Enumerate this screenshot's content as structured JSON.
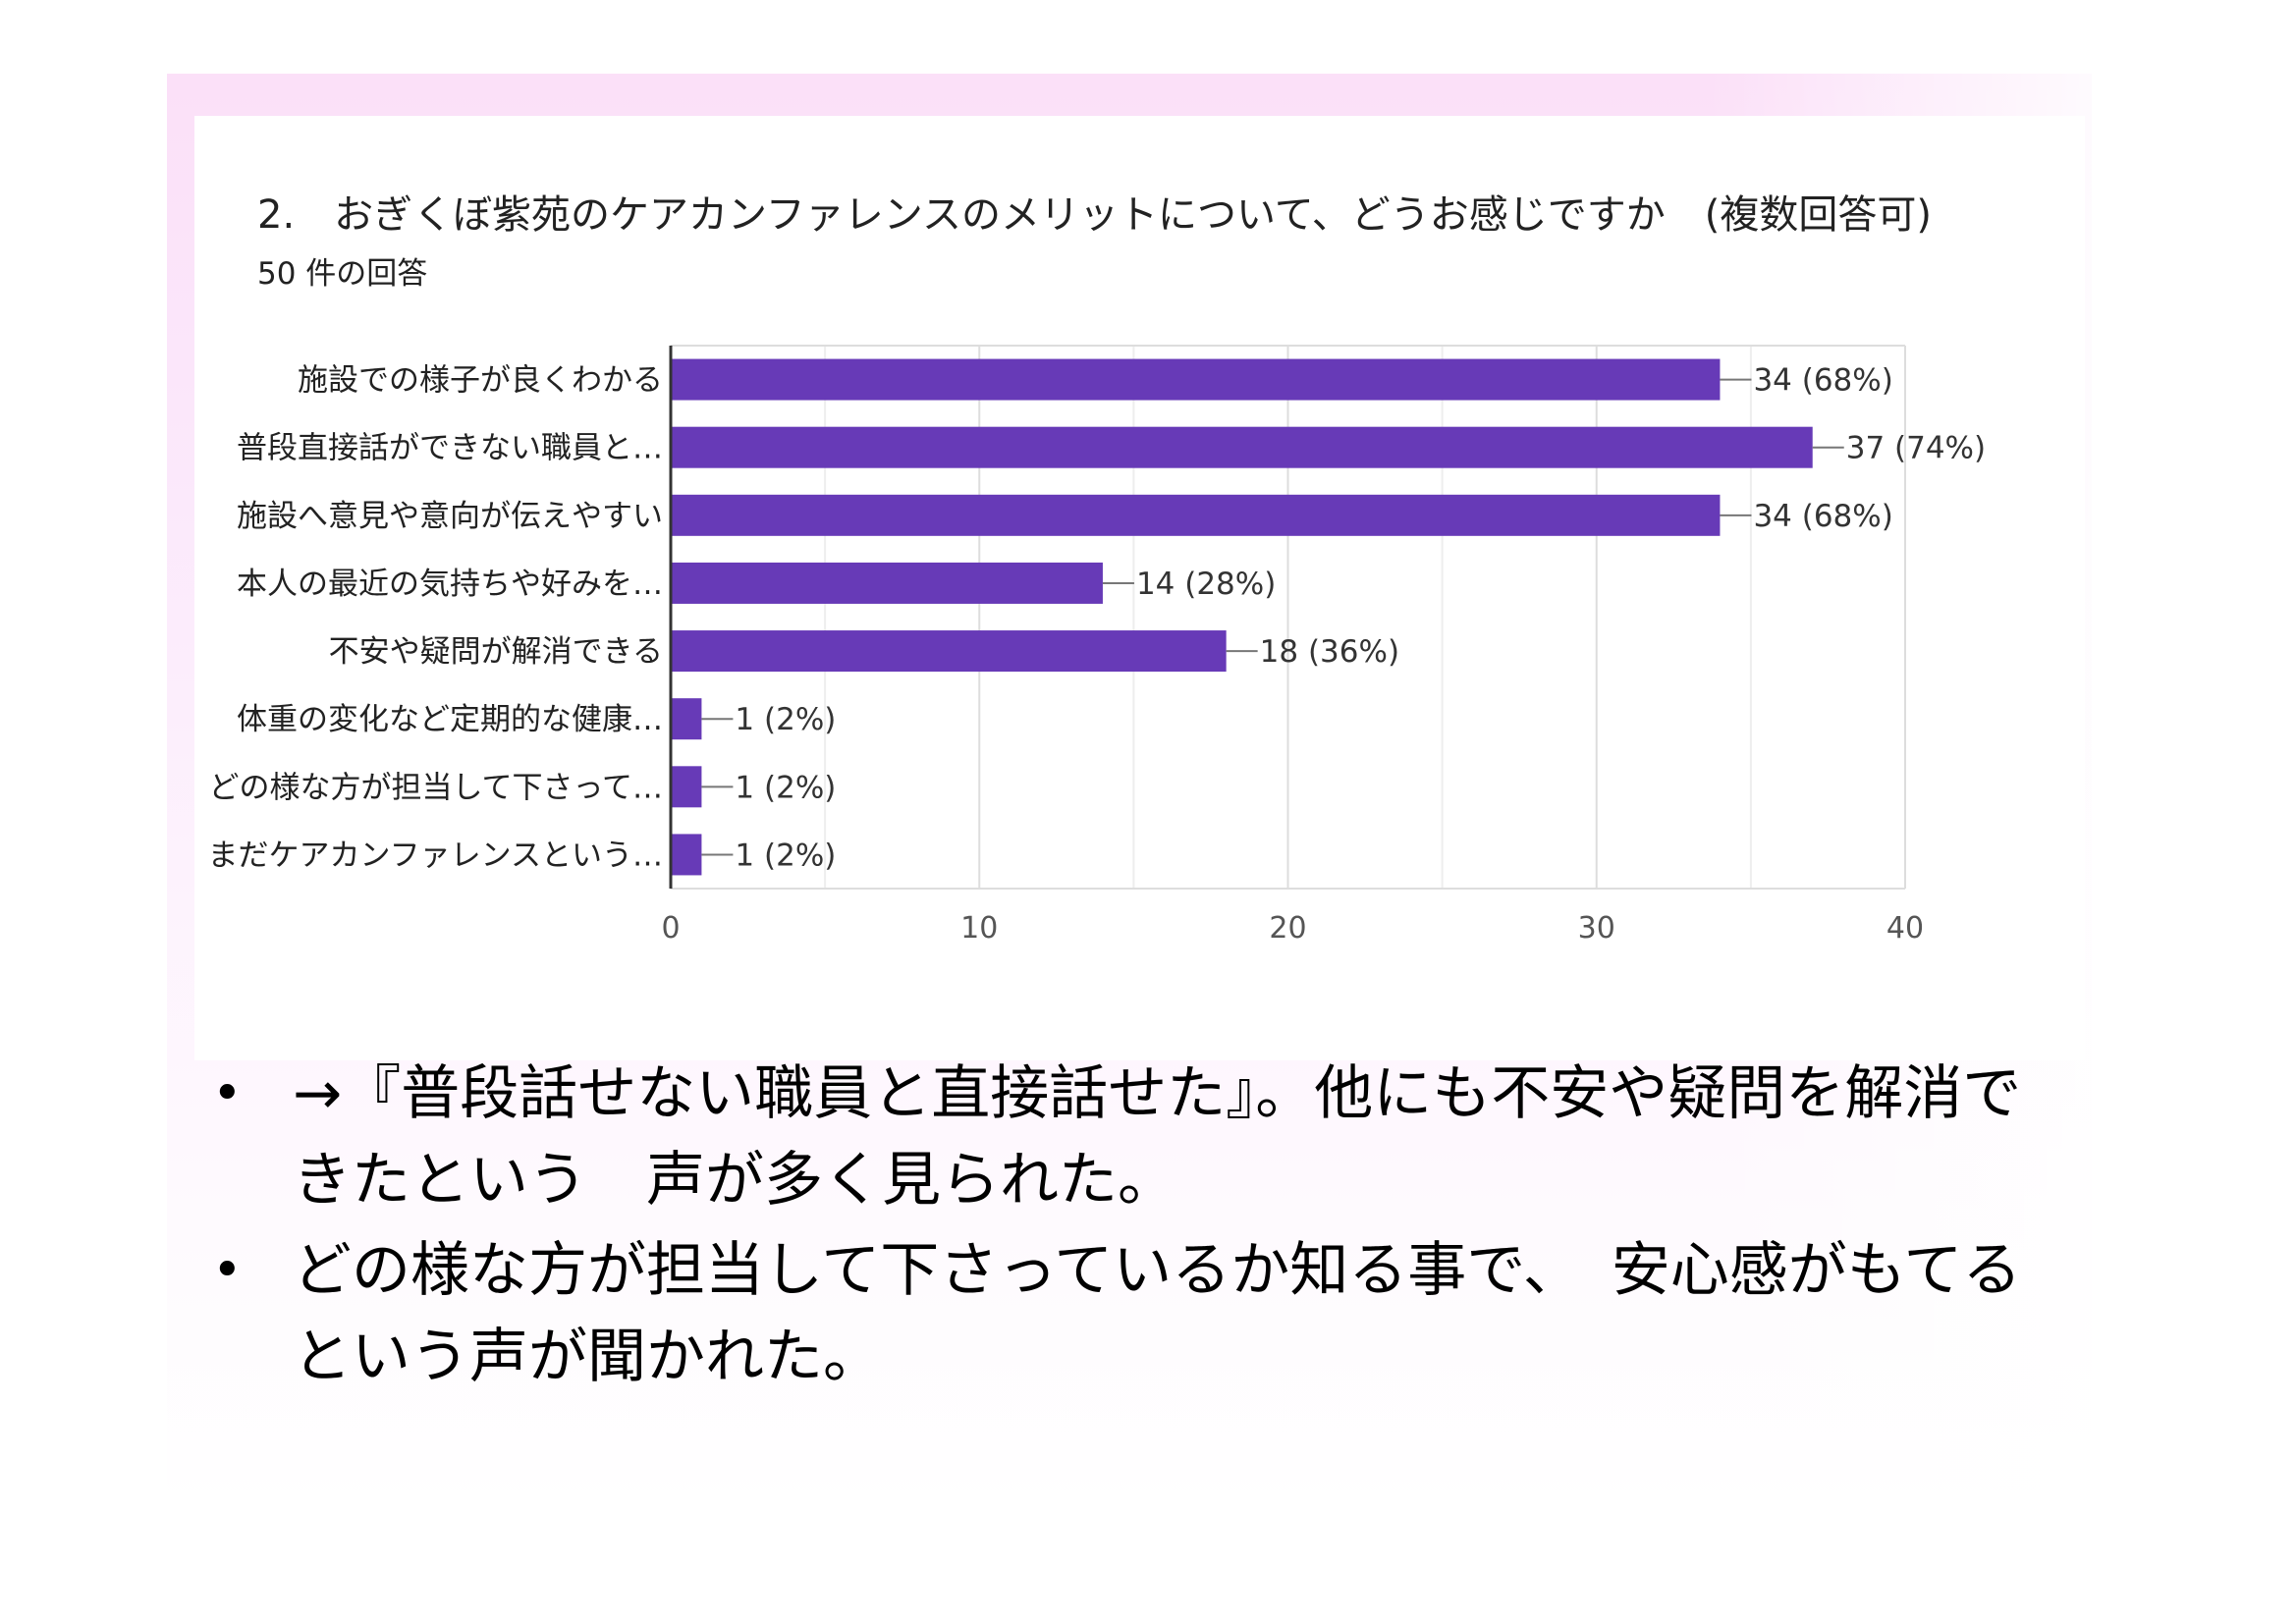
{
  "chart_data": {
    "type": "bar",
    "orientation": "horizontal",
    "title": "2.　おぎくぼ紫苑のケアカンファレンスのメリットについて、どうお感じですか　(複数回答可)",
    "subtitle": "50 件の回答",
    "categories": [
      "施設での様子が良くわかる",
      "普段直接話ができない職員と…",
      "施設へ意見や意向が伝えやすい",
      "本人の最近の気持ちや好みを…",
      "不安や疑問が解消できる",
      "体重の変化など定期的な健康…",
      "どの様な方が担当して下さって…",
      "まだケアカンファレンスという…"
    ],
    "values": [
      34,
      37,
      34,
      14,
      18,
      1,
      1,
      1
    ],
    "value_labels": [
      "34 (68%)",
      "37 (74%)",
      "34 (68%)",
      "14 (28%)",
      "18 (36%)",
      "1 (2%)",
      "1 (2%)",
      "1 (2%)"
    ],
    "xlim": [
      0,
      40
    ],
    "xticks": [
      0,
      10,
      20,
      30,
      40
    ],
    "grid": true,
    "bar_color": "#673ab7"
  },
  "bullets": [
    "→『普段話せない職員と直接話せた』。他にも不安や疑問を解消できたという　声が多く見られた。",
    "どの様な方が担当して下さっているか知る事で、　安心感がもてるという声が聞かれた。"
  ],
  "bullet_symbol": "•"
}
